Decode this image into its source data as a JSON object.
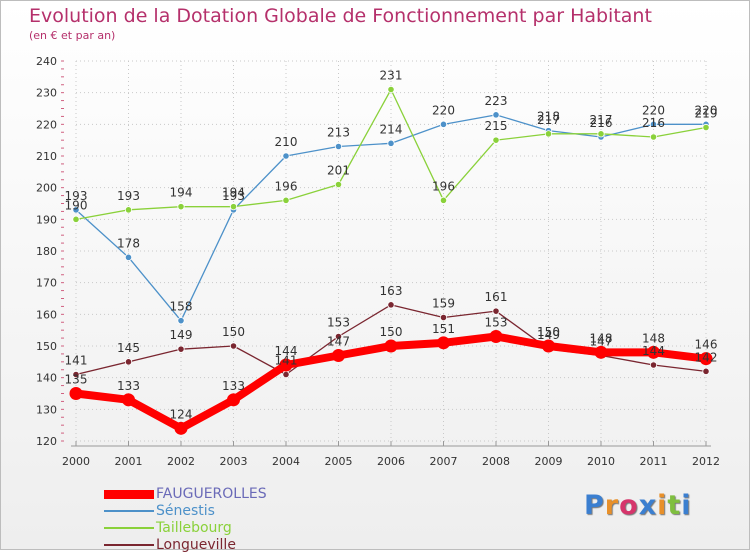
{
  "header": {
    "title": "Evolution de la Dotation Globale de Fonctionnement par Habitant",
    "subtitle": "(en € et par an)"
  },
  "chart_data": {
    "type": "line",
    "title": "Evolution de la Dotation Globale de Fonctionnement par Habitant",
    "subtitle": "(en € et par an)",
    "x": [
      "2000",
      "2001",
      "2002",
      "2003",
      "2004",
      "2005",
      "2006",
      "2007",
      "2008",
      "2009",
      "2010",
      "2011",
      "2012"
    ],
    "ylim": [
      120,
      240
    ],
    "yticks": [
      120,
      130,
      140,
      150,
      160,
      170,
      180,
      190,
      200,
      210,
      220,
      230,
      240
    ],
    "grid": true,
    "legend_position": "bottom-left",
    "series": [
      {
        "name": "FAUGUEROLLES",
        "color": "#ff0000",
        "values": [
          135,
          133,
          124,
          133,
          144,
          147,
          150,
          151,
          153,
          150,
          148,
          148,
          146
        ]
      },
      {
        "name": "Sénestis",
        "color": "#4d91c9",
        "values": [
          193,
          178,
          158,
          193,
          210,
          213,
          214,
          220,
          223,
          218,
          216,
          220,
          220
        ]
      },
      {
        "name": "Taillebourg",
        "color": "#8ad13a",
        "values": [
          190,
          193,
          194,
          194,
          196,
          201,
          231,
          196,
          215,
          217,
          217,
          216,
          219
        ]
      },
      {
        "name": "Longueville",
        "color": "#7a2630",
        "values": [
          141,
          145,
          149,
          150,
          141,
          153,
          163,
          159,
          161,
          149,
          147,
          144,
          142
        ]
      }
    ]
  },
  "logo": {
    "letters": [
      "P",
      "r",
      "o",
      "x",
      "i",
      "t",
      "i"
    ],
    "colors": [
      "#3b7fd0",
      "#e8902a",
      "#d6356b",
      "#3b7fd0",
      "#e8902a",
      "#7fbf3f",
      "#3b7fd0"
    ]
  }
}
